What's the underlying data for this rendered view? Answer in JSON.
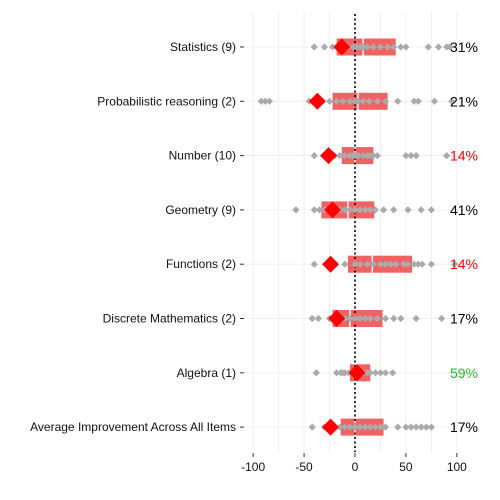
{
  "chart_data": {
    "type": "scatter",
    "title": "",
    "xlabel": "",
    "ylabel": "",
    "xlim": [
      -108,
      108
    ],
    "x_ticks": [
      -100,
      -50,
      0,
      50,
      100
    ],
    "x_tick_labels": [
      "-100",
      "-50",
      "0",
      "50",
      "100"
    ],
    "reference_line_x": 0,
    "grid": true,
    "legend": "none",
    "colors": {
      "box": "#f26262",
      "point": "#aaaaaa",
      "mean": "#ff0000",
      "pct_default": "#000000",
      "pct_low": "#ff0000",
      "pct_high": "#22bb22",
      "grid": "#ececec"
    },
    "categories": [
      {
        "label": "Statistics (9)",
        "q1": -18,
        "median": 8,
        "q3": 40,
        "mean": -13,
        "points": [
          -40,
          -30,
          -22,
          -15,
          -8,
          -2,
          2,
          5,
          8,
          12,
          18,
          25,
          32,
          38,
          45,
          50,
          72,
          82,
          90,
          93
        ],
        "percent": "31%",
        "percent_color": "pct_default"
      },
      {
        "label": "Probabilistic reasoning (2)",
        "q1": -22,
        "median": 3,
        "q3": 32,
        "mean": -37,
        "points": [
          -92,
          -88,
          -84,
          -45,
          -32,
          -25,
          -18,
          -12,
          -5,
          0,
          3,
          8,
          14,
          22,
          30,
          42,
          58,
          62,
          78,
          95
        ],
        "percent": "21%",
        "percent_color": "pct_default"
      },
      {
        "label": "Number (10)",
        "q1": -13,
        "median": 0,
        "q3": 18,
        "mean": -26,
        "points": [
          -40,
          -30,
          -20,
          -15,
          -10,
          -5,
          -2,
          0,
          3,
          8,
          12,
          15,
          18,
          22,
          50,
          55,
          60,
          90
        ],
        "percent": "14%",
        "percent_color": "pct_low"
      },
      {
        "label": "Geometry (9)",
        "q1": -33,
        "median": -7,
        "q3": 19,
        "mean": -22,
        "points": [
          -58,
          -40,
          -35,
          -30,
          -25,
          -20,
          -15,
          -10,
          -5,
          0,
          5,
          10,
          15,
          20,
          28,
          38,
          52,
          65,
          75
        ],
        "percent": "41%",
        "percent_color": "pct_default"
      },
      {
        "label": "Functions (2)",
        "q1": -7,
        "median": 17,
        "q3": 56,
        "mean": -24,
        "points": [
          -40,
          -10,
          0,
          5,
          12,
          18,
          25,
          30,
          35,
          40,
          48,
          52,
          58,
          62,
          66,
          75,
          98
        ],
        "percent": "14%",
        "percent_color": "pct_low"
      },
      {
        "label": "Discrete Mathematics (2)",
        "q1": -22,
        "median": -5,
        "q3": 27,
        "mean": -18,
        "points": [
          -42,
          -36,
          -25,
          -20,
          -15,
          -10,
          -5,
          0,
          5,
          10,
          15,
          22,
          30,
          38,
          45,
          60,
          85
        ],
        "percent": "17%",
        "percent_color": "pct_default"
      },
      {
        "label": "Algebra (1)",
        "q1": -5,
        "median": 0,
        "q3": 15,
        "mean": 2,
        "points": [
          -38,
          -18,
          -14,
          -12,
          -10,
          -6,
          -3,
          0,
          2,
          5,
          8,
          12,
          15,
          20,
          25,
          30,
          37
        ],
        "percent": "59%",
        "percent_color": "pct_high"
      },
      {
        "label": "Average Improvement Across All Items",
        "q1": -14,
        "median": 0,
        "q3": 28,
        "mean": -24,
        "points": [
          -42,
          -30,
          -20,
          -15,
          -10,
          -5,
          0,
          5,
          10,
          15,
          20,
          25,
          30,
          42,
          50,
          55,
          60,
          65,
          70,
          75
        ],
        "percent": "17%",
        "percent_color": "pct_default"
      }
    ]
  }
}
